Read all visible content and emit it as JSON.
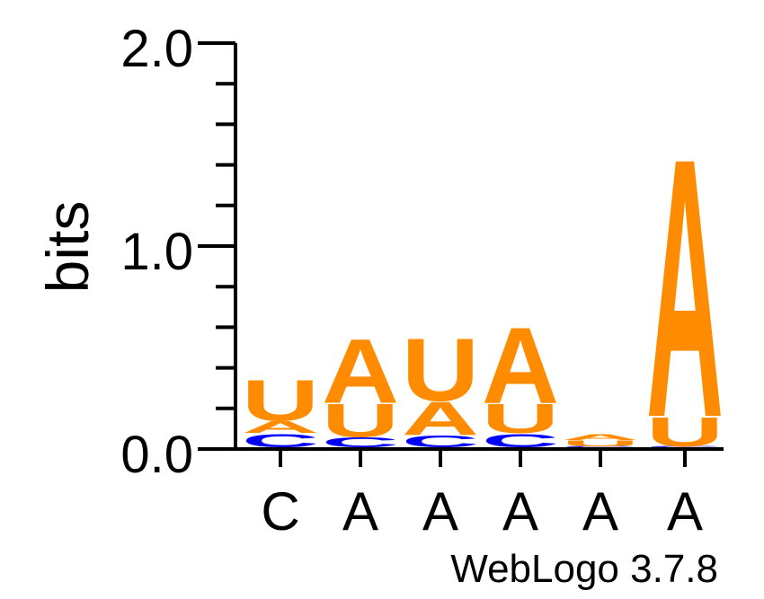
{
  "chart_data": {
    "type": "sequence-logo",
    "ylabel": "bits",
    "ylim": [
      0,
      2.0
    ],
    "yticks": [
      "0.0",
      "1.0",
      "2.0"
    ],
    "credit": "WebLogo 3.7.8",
    "colors": {
      "A": "#ff8c00",
      "U": "#ff8c00",
      "C": "#0000ff",
      "G": "#ffa500"
    },
    "positions": [
      {
        "label": "C",
        "stack": [
          {
            "letter": "C",
            "bits": 0.07
          },
          {
            "letter": "A",
            "bits": 0.06
          },
          {
            "letter": "U",
            "bits": 0.21
          }
        ]
      },
      {
        "label": "A",
        "stack": [
          {
            "letter": "C",
            "bits": 0.05
          },
          {
            "letter": "U",
            "bits": 0.17
          },
          {
            "letter": "A",
            "bits": 0.33
          }
        ]
      },
      {
        "label": "A",
        "stack": [
          {
            "letter": "C",
            "bits": 0.06
          },
          {
            "letter": "A",
            "bits": 0.17
          },
          {
            "letter": "U",
            "bits": 0.32
          }
        ]
      },
      {
        "label": "A",
        "stack": [
          {
            "letter": "C",
            "bits": 0.07
          },
          {
            "letter": "U",
            "bits": 0.15
          },
          {
            "letter": "A",
            "bits": 0.39
          }
        ]
      },
      {
        "label": "A",
        "stack": [
          {
            "letter": "C",
            "bits": 0.005
          },
          {
            "letter": "U",
            "bits": 0.03
          },
          {
            "letter": "A",
            "bits": 0.03
          }
        ]
      },
      {
        "label": "A",
        "stack": [
          {
            "letter": "C",
            "bits": 0.005
          },
          {
            "letter": "U",
            "bits": 0.15
          },
          {
            "letter": "A",
            "bits": 1.33
          }
        ]
      }
    ]
  }
}
